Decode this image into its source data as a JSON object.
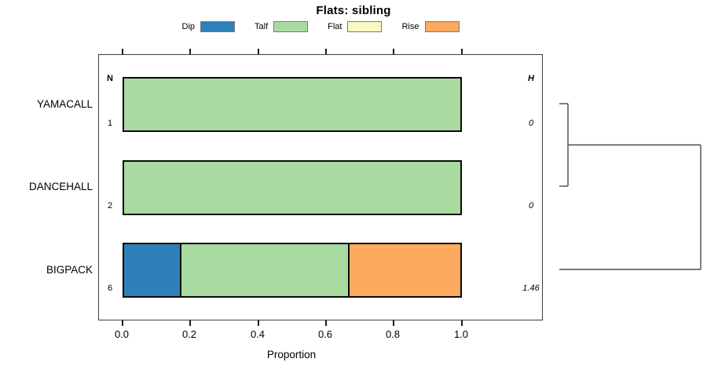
{
  "title": "Flats: sibling",
  "legend": {
    "items": [
      {
        "label": "Dip",
        "color": "#2e81b8"
      },
      {
        "label": "Talf",
        "color": "#a9dba1"
      },
      {
        "label": "Flat",
        "color": "#f9f9c5"
      },
      {
        "label": "Rise",
        "color": "#fbaa5e"
      }
    ]
  },
  "columns": {
    "n_header": "N",
    "h_header": "H"
  },
  "rows": [
    {
      "label": "YAMACALL",
      "n": "1",
      "h": "0",
      "segments": [
        {
          "category": "Talf",
          "from": 0,
          "to": 1
        }
      ]
    },
    {
      "label": "DANCEHALL",
      "n": "2",
      "h": "0",
      "segments": [
        {
          "category": "Talf",
          "from": 0,
          "to": 1
        }
      ]
    },
    {
      "label": "BIGPACK",
      "n": "6",
      "h": "1.46",
      "segments": [
        {
          "category": "Dip",
          "from": 0,
          "to": 0.1667
        },
        {
          "category": "Talf",
          "from": 0.1667,
          "to": 0.6667
        },
        {
          "category": "Rise",
          "from": 0.6667,
          "to": 1
        }
      ]
    }
  ],
  "axis": {
    "label": "Proportion",
    "ticks": [
      "0.0",
      "0.2",
      "0.4",
      "0.6",
      "0.8",
      "1.0"
    ]
  },
  "chart_data": {
    "type": "bar",
    "orientation": "horizontal",
    "stacked": true,
    "title": "Flats: sibling",
    "xlabel": "Proportion",
    "xlim": [
      0,
      1
    ],
    "xticks": [
      0.0,
      0.2,
      0.4,
      0.6,
      0.8,
      1.0
    ],
    "grid": false,
    "legend_position": "top",
    "categories": [
      "YAMACALL",
      "DANCEHALL",
      "BIGPACK"
    ],
    "series": [
      {
        "name": "Dip",
        "color": "#2e81b8",
        "values": [
          0,
          0,
          0.1667
        ]
      },
      {
        "name": "Talf",
        "color": "#a9dba1",
        "values": [
          1,
          1,
          0.5
        ]
      },
      {
        "name": "Flat",
        "color": "#f9f9c5",
        "values": [
          0,
          0,
          0
        ]
      },
      {
        "name": "Rise",
        "color": "#fbaa5e",
        "values": [
          0,
          0,
          0.3333
        ]
      }
    ],
    "annotations": {
      "N": [
        1,
        2,
        6
      ],
      "H": [
        0,
        0,
        1.46
      ]
    },
    "dendrogram": "YAMACALL and DANCEHALL join first (low height), cluster then joins BIGPACK at greater height"
  }
}
